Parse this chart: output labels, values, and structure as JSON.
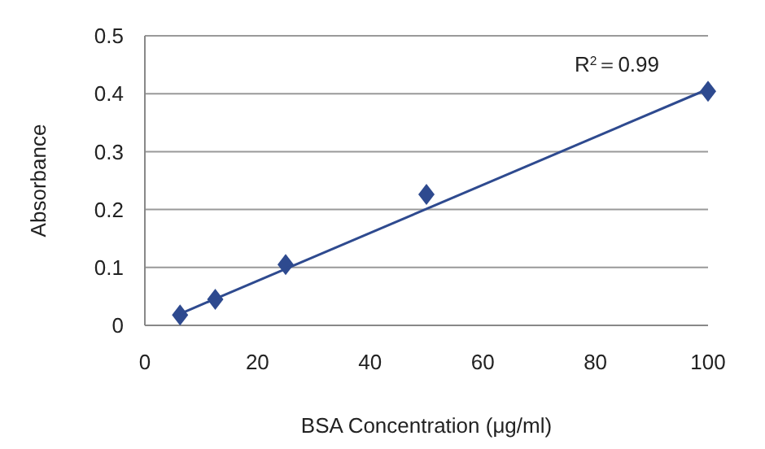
{
  "chart_data": {
    "type": "scatter",
    "xlabel": "BSA Concentration (μg/ml)",
    "ylabel": "Absorbance",
    "annotations": [
      "R$^{2}$＝0.99"
    ],
    "grid": "y",
    "xlim": [
      0,
      100
    ],
    "xticks": [
      0,
      20,
      40,
      60,
      80,
      100
    ],
    "ylim": [
      0,
      0.5
    ],
    "yticks": [
      0,
      0.1,
      0.2,
      0.3,
      0.4,
      0.5
    ],
    "series": [
      {
        "marker": "diamond",
        "color": "#2e4a8f",
        "x": [
          6.25,
          12.5,
          25,
          50,
          100
        ],
        "values": [
          0.018,
          0.045,
          0.105,
          0.226,
          0.404
        ]
      },
      {
        "type": "line",
        "marker": "none",
        "color": "#2e4a8f",
        "x": [
          6.25,
          100
        ],
        "values": [
          0.02,
          0.408
        ]
      }
    ]
  }
}
